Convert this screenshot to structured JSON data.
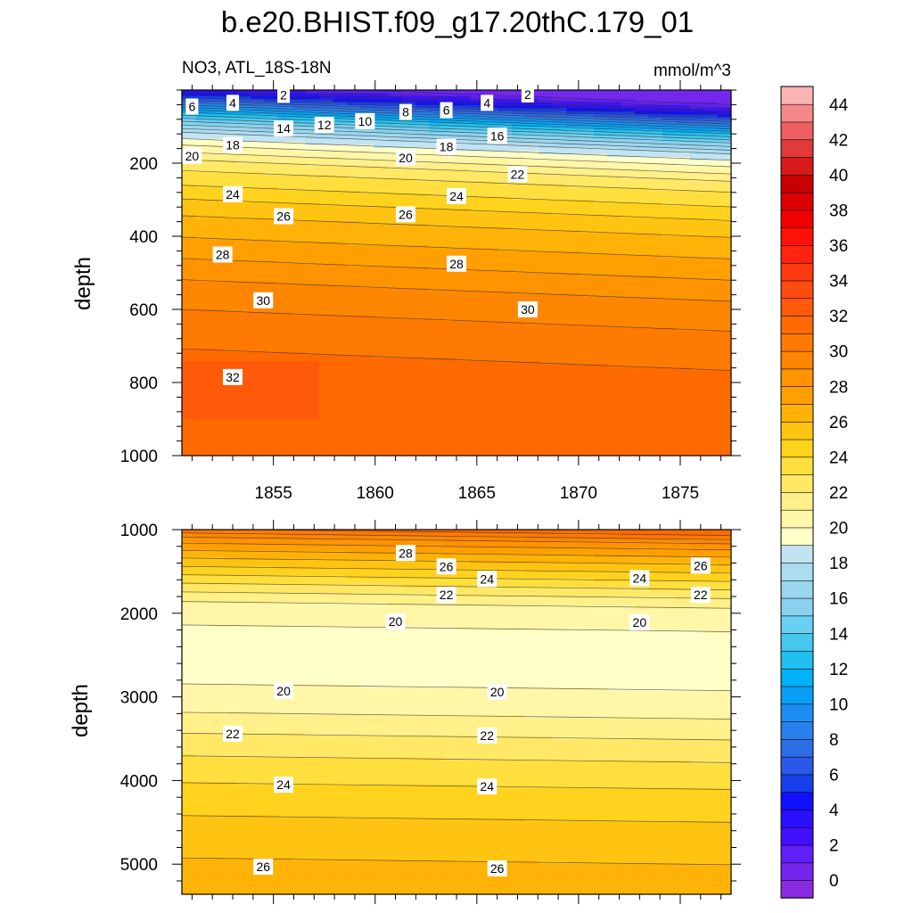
{
  "chart_data": {
    "type": "contour",
    "title": "b.e20.BHIST.f09_g17.20thC.179_01",
    "subtitle_left": "NO3, ATL_18S-18N",
    "subtitle_right": "mmol/m^3",
    "ylabel": "depth",
    "x_range": [
      1850.5,
      1877.5
    ],
    "x_ticks": [
      1855,
      1860,
      1865,
      1870,
      1875
    ],
    "x_tick_labels": [
      "1855",
      "1860",
      "1865",
      "1870",
      "1875"
    ],
    "colorbar": {
      "tick_labels": [
        "0",
        "2",
        "4",
        "6",
        "8",
        "10",
        "12",
        "14",
        "16",
        "18",
        "20",
        "22",
        "24",
        "26",
        "28",
        "30",
        "32",
        "34",
        "36",
        "38",
        "40",
        "42",
        "44"
      ],
      "min": -1,
      "max": 46,
      "step": 1,
      "colors": [
        "#8a2be2",
        "#7526ed",
        "#5f1ff7",
        "#4210ff",
        "#2b10ff",
        "#1010ff",
        "#1640ea",
        "#2a58e8",
        "#2e6ee5",
        "#2a80ea",
        "#1a8ef2",
        "#0a9ff7",
        "#00b2f8",
        "#22c0f0",
        "#46c8ee",
        "#69d0f2",
        "#8ad2f0",
        "#9ad6ee",
        "#acdcf0",
        "#c2e4f2",
        "#ffffc8",
        "#fff6a8",
        "#fff089",
        "#ffe866",
        "#ffdf3e",
        "#ffd21e",
        "#ffc412",
        "#ffb207",
        "#ffa000",
        "#ff9300",
        "#ff8600",
        "#ff7a00",
        "#ff6a00",
        "#ff5a0a",
        "#ff4a10",
        "#ff3a10",
        "#ff2410",
        "#ff1008",
        "#f00000",
        "#dc0000",
        "#c80000",
        "#d61a1a",
        "#e23a3a",
        "#ee6060",
        "#f58888",
        "#fab4b4"
      ]
    },
    "panels": [
      {
        "id": "upper",
        "y_range": [
          0,
          1000
        ],
        "y_ticks": [
          200,
          400,
          600,
          800,
          1000
        ],
        "y_tick_labels": [
          "200",
          "400",
          "600",
          "800",
          "1000"
        ],
        "profile": [
          {
            "depth": 0,
            "value": 0
          },
          {
            "depth": 20,
            "value": 2
          },
          {
            "depth": 35,
            "value": 4
          },
          {
            "depth": 50,
            "value": 6
          },
          {
            "depth": 70,
            "value": 9
          },
          {
            "depth": 90,
            "value": 12
          },
          {
            "depth": 115,
            "value": 15
          },
          {
            "depth": 145,
            "value": 18
          },
          {
            "depth": 180,
            "value": 20
          },
          {
            "depth": 230,
            "value": 22.5
          },
          {
            "depth": 290,
            "value": 24
          },
          {
            "depth": 350,
            "value": 25.6
          },
          {
            "depth": 450,
            "value": 27.3
          },
          {
            "depth": 560,
            "value": 29.2
          },
          {
            "depth": 700,
            "value": 30.8
          },
          {
            "depth": 850,
            "value": 31.6
          },
          {
            "depth": 1000,
            "value": 31.9
          }
        ],
        "depth_trend_per_year": 2.2,
        "contour_labels": [
          {
            "x": 1851.0,
            "y": 45,
            "text": "6"
          },
          {
            "x": 1853.0,
            "y": 35,
            "text": "4"
          },
          {
            "x": 1855.5,
            "y": 13,
            "text": "2"
          },
          {
            "x": 1855.5,
            "y": 105,
            "text": "14"
          },
          {
            "x": 1857.5,
            "y": 95,
            "text": "12"
          },
          {
            "x": 1859.5,
            "y": 85,
            "text": "10"
          },
          {
            "x": 1861.5,
            "y": 60,
            "text": "8"
          },
          {
            "x": 1863.5,
            "y": 55,
            "text": "6"
          },
          {
            "x": 1865.5,
            "y": 35,
            "text": "4"
          },
          {
            "x": 1867.5,
            "y": 12,
            "text": "2"
          },
          {
            "x": 1866.0,
            "y": 125,
            "text": "16"
          },
          {
            "x": 1853.0,
            "y": 150,
            "text": "18"
          },
          {
            "x": 1863.5,
            "y": 155,
            "text": "18"
          },
          {
            "x": 1851.0,
            "y": 180,
            "text": "20"
          },
          {
            "x": 1861.5,
            "y": 185,
            "text": "20"
          },
          {
            "x": 1867.0,
            "y": 230,
            "text": "22"
          },
          {
            "x": 1853.0,
            "y": 285,
            "text": "24"
          },
          {
            "x": 1864.0,
            "y": 290,
            "text": "24"
          },
          {
            "x": 1855.5,
            "y": 345,
            "text": "26"
          },
          {
            "x": 1861.5,
            "y": 340,
            "text": "26"
          },
          {
            "x": 1852.5,
            "y": 450,
            "text": "28"
          },
          {
            "x": 1864.0,
            "y": 475,
            "text": "28"
          },
          {
            "x": 1854.5,
            "y": 575,
            "text": "30"
          },
          {
            "x": 1867.5,
            "y": 600,
            "text": "30"
          },
          {
            "x": 1853.0,
            "y": 785,
            "text": "32"
          }
        ]
      },
      {
        "id": "lower",
        "y_range": [
          1000,
          5360
        ],
        "y_ticks": [
          1000,
          2000,
          3000,
          4000,
          5000
        ],
        "y_tick_labels": [
          "1000",
          "2000",
          "3000",
          "4000",
          "5000"
        ],
        "profile": [
          {
            "depth": 1000,
            "value": 31.6
          },
          {
            "depth": 1150,
            "value": 28.6
          },
          {
            "depth": 1350,
            "value": 26.3
          },
          {
            "depth": 1550,
            "value": 24.3
          },
          {
            "depth": 1750,
            "value": 22.3
          },
          {
            "depth": 1900,
            "value": 21.0
          },
          {
            "depth": 2100,
            "value": 20.1
          },
          {
            "depth": 2500,
            "value": 19.6
          },
          {
            "depth": 2850,
            "value": 19.9
          },
          {
            "depth": 3200,
            "value": 20.9
          },
          {
            "depth": 3500,
            "value": 22.1
          },
          {
            "depth": 3800,
            "value": 23.2
          },
          {
            "depth": 4100,
            "value": 24.1
          },
          {
            "depth": 4500,
            "value": 25.1
          },
          {
            "depth": 4900,
            "value": 25.9
          },
          {
            "depth": 5360,
            "value": 26.6
          }
        ],
        "depth_trend_per_year": 3.0,
        "contour_labels": [
          {
            "x": 1861.5,
            "y": 1280,
            "text": "28"
          },
          {
            "x": 1863.5,
            "y": 1440,
            "text": "26"
          },
          {
            "x": 1865.5,
            "y": 1590,
            "text": "24"
          },
          {
            "x": 1863.5,
            "y": 1780,
            "text": "22"
          },
          {
            "x": 1861.0,
            "y": 2100,
            "text": "20"
          },
          {
            "x": 1873.0,
            "y": 1580,
            "text": "24"
          },
          {
            "x": 1876.0,
            "y": 1430,
            "text": "26"
          },
          {
            "x": 1876.0,
            "y": 1780,
            "text": "22"
          },
          {
            "x": 1873.0,
            "y": 2110,
            "text": "20"
          },
          {
            "x": 1855.5,
            "y": 2930,
            "text": "20"
          },
          {
            "x": 1866.0,
            "y": 2940,
            "text": "20"
          },
          {
            "x": 1853.0,
            "y": 3440,
            "text": "22"
          },
          {
            "x": 1865.5,
            "y": 3460,
            "text": "22"
          },
          {
            "x": 1855.5,
            "y": 4050,
            "text": "24"
          },
          {
            "x": 1865.5,
            "y": 4070,
            "text": "24"
          },
          {
            "x": 1854.5,
            "y": 5030,
            "text": "26"
          },
          {
            "x": 1866.0,
            "y": 5050,
            "text": "26"
          }
        ]
      }
    ]
  }
}
